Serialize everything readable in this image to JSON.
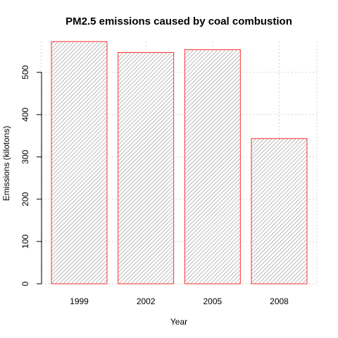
{
  "chart_data": {
    "type": "bar",
    "title": "PM2.5 emissions caused by coal combustion",
    "xlabel": "Year",
    "ylabel": "Emissions (kilotons)",
    "categories": [
      "1999",
      "2002",
      "2005",
      "2008"
    ],
    "values": [
      572.8,
      547.0,
      553.5,
      343.4
    ],
    "ylim": [
      0,
      572.8
    ],
    "yticks": [
      0,
      100,
      200,
      300,
      400,
      500
    ],
    "grid": true,
    "bar_fill": "hatched light gray",
    "bar_border_color": "#ff3030",
    "grid_color": "#d3d3d3"
  }
}
